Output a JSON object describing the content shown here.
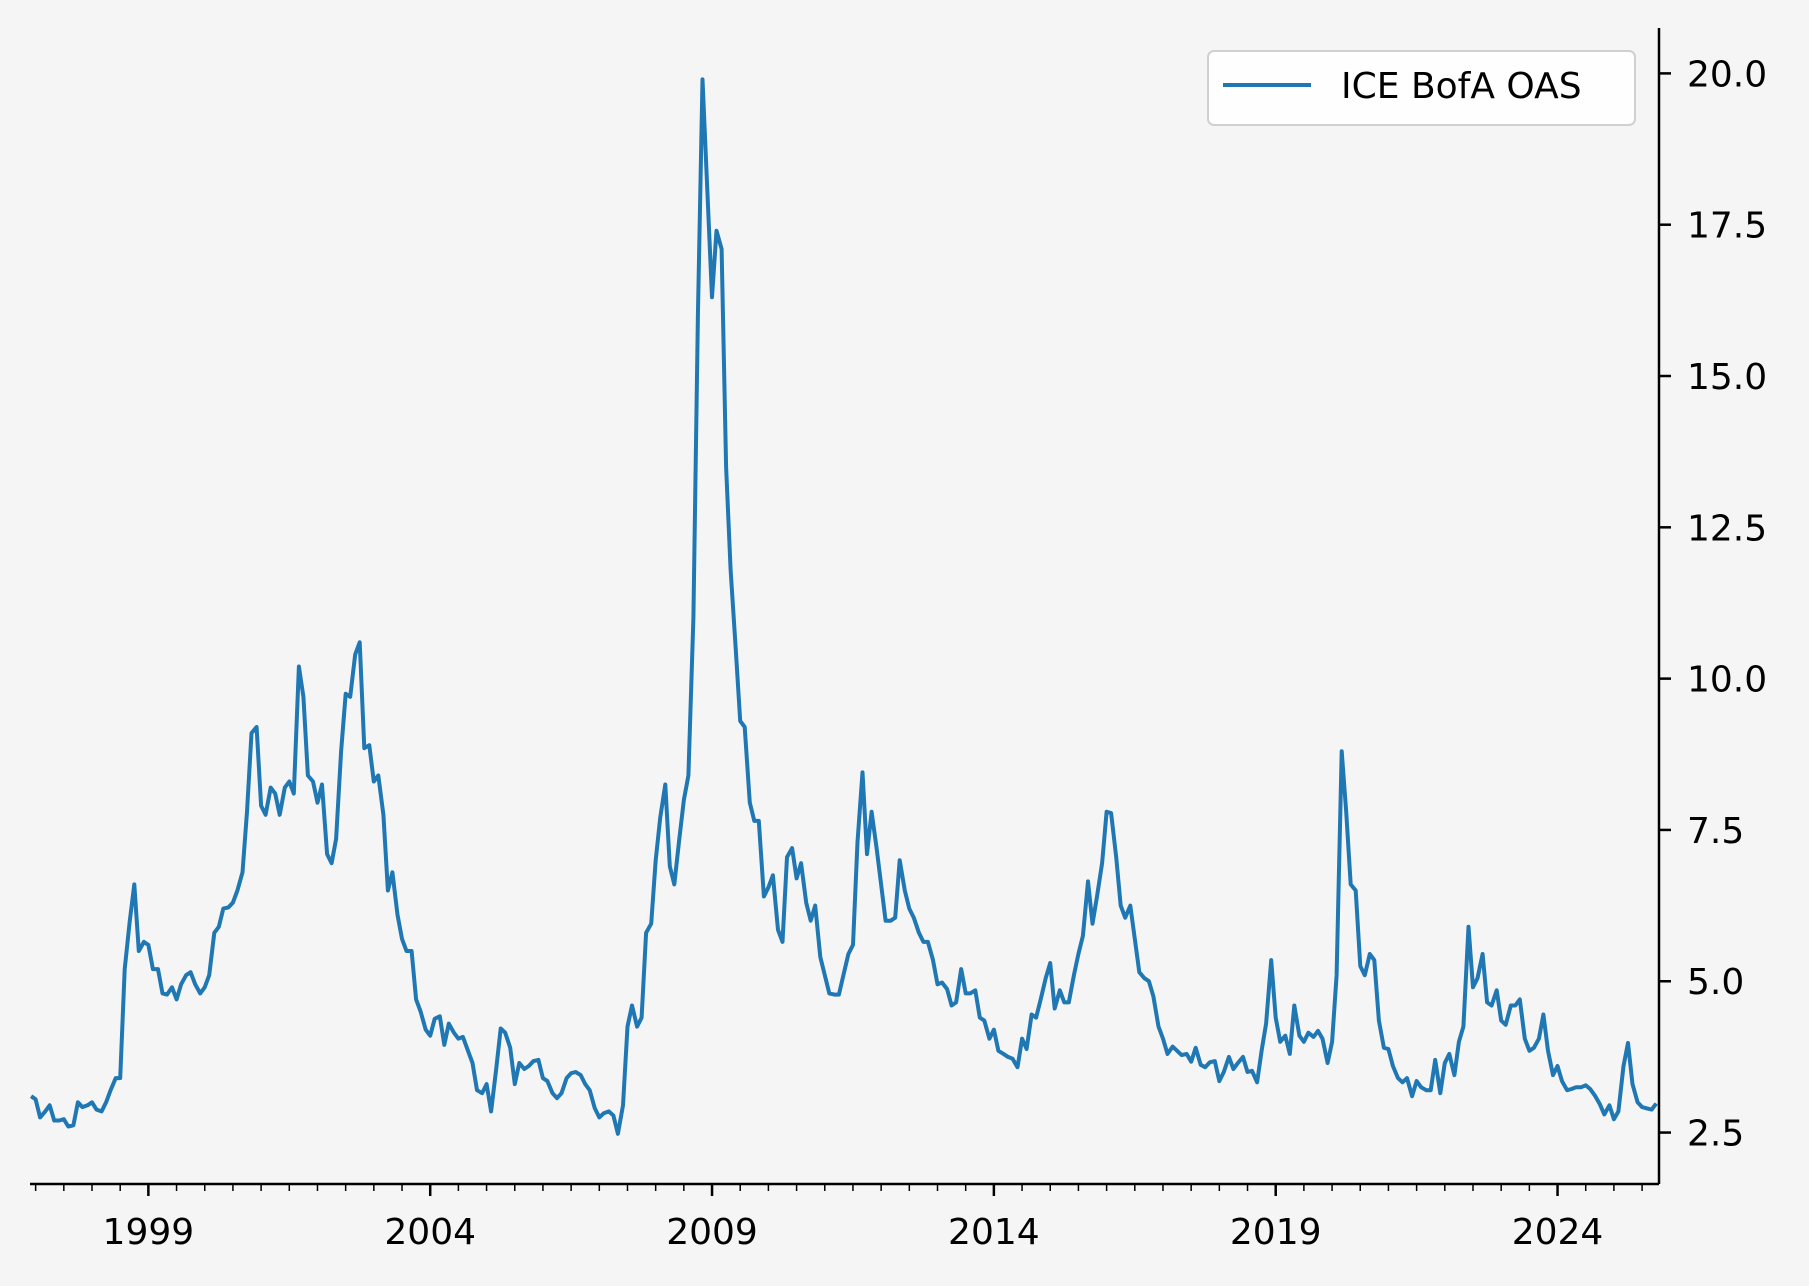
{
  "chart_data": {
    "type": "line",
    "title": "",
    "xlabel": "",
    "ylabel": "",
    "xlim": [
      1996.9,
      2025.8
    ],
    "ylim": [
      1.65,
      20.75
    ],
    "y_axis_side": "right",
    "grid": false,
    "legend": {
      "placement": "top-right",
      "entries": [
        "ICE BofA OAS"
      ]
    },
    "x_ticks": [
      1999,
      2004,
      2009,
      2014,
      2019,
      2024
    ],
    "x_tick_labels": [
      "1999",
      "2004",
      "2009",
      "2014",
      "2019",
      "2024"
    ],
    "y_ticks": [
      2.5,
      5.0,
      7.5,
      10.0,
      12.5,
      15.0,
      17.5,
      20.0
    ],
    "y_tick_labels": [
      "2.5",
      "5.0",
      "7.5",
      "10.0",
      "12.5",
      "15.0",
      "17.5",
      "20.0"
    ],
    "series": [
      {
        "name": "ICE BofA OAS",
        "color": "#1f77b4",
        "x": [
          1996.92,
          1997.0,
          1997.08,
          1997.17,
          1997.25,
          1997.33,
          1997.42,
          1997.5,
          1997.58,
          1997.67,
          1997.75,
          1997.83,
          1997.92,
          1998.0,
          1998.08,
          1998.17,
          1998.25,
          1998.33,
          1998.42,
          1998.5,
          1998.58,
          1998.67,
          1998.75,
          1998.83,
          1998.92,
          1999.0,
          1999.08,
          1999.17,
          1999.25,
          1999.33,
          1999.42,
          1999.5,
          1999.58,
          1999.67,
          1999.75,
          1999.83,
          1999.92,
          2000.0,
          2000.08,
          2000.17,
          2000.25,
          2000.33,
          2000.42,
          2000.5,
          2000.58,
          2000.67,
          2000.75,
          2000.83,
          2000.92,
          2001.0,
          2001.08,
          2001.17,
          2001.25,
          2001.33,
          2001.42,
          2001.5,
          2001.58,
          2001.67,
          2001.75,
          2001.83,
          2001.92,
          2002.0,
          2002.08,
          2002.17,
          2002.25,
          2002.33,
          2002.42,
          2002.5,
          2002.58,
          2002.67,
          2002.75,
          2002.83,
          2002.92,
          2003.0,
          2003.08,
          2003.17,
          2003.25,
          2003.33,
          2003.42,
          2003.5,
          2003.58,
          2003.67,
          2003.75,
          2003.83,
          2003.92,
          2004.0,
          2004.08,
          2004.17,
          2004.25,
          2004.33,
          2004.42,
          2004.5,
          2004.58,
          2004.67,
          2004.75,
          2004.83,
          2004.92,
          2005.0,
          2005.08,
          2005.17,
          2005.25,
          2005.33,
          2005.42,
          2005.5,
          2005.58,
          2005.67,
          2005.75,
          2005.83,
          2005.92,
          2006.0,
          2006.08,
          2006.17,
          2006.25,
          2006.33,
          2006.42,
          2006.5,
          2006.58,
          2006.67,
          2006.75,
          2006.83,
          2006.92,
          2007.0,
          2007.08,
          2007.17,
          2007.25,
          2007.33,
          2007.42,
          2007.5,
          2007.58,
          2007.67,
          2007.75,
          2007.83,
          2007.92,
          2008.0,
          2008.08,
          2008.17,
          2008.25,
          2008.33,
          2008.42,
          2008.5,
          2008.58,
          2008.67,
          2008.75,
          2008.83,
          2008.92,
          2009.0,
          2009.08,
          2009.17,
          2009.25,
          2009.33,
          2009.42,
          2009.5,
          2009.58,
          2009.67,
          2009.75,
          2009.83,
          2009.92,
          2010.0,
          2010.08,
          2010.17,
          2010.25,
          2010.33,
          2010.42,
          2010.5,
          2010.58,
          2010.67,
          2010.75,
          2010.83,
          2010.92,
          2011.0,
          2011.08,
          2011.17,
          2011.25,
          2011.33,
          2011.42,
          2011.5,
          2011.58,
          2011.67,
          2011.75,
          2011.83,
          2011.92,
          2012.0,
          2012.08,
          2012.17,
          2012.25,
          2012.33,
          2012.42,
          2012.5,
          2012.58,
          2012.67,
          2012.75,
          2012.83,
          2012.92,
          2013.0,
          2013.08,
          2013.17,
          2013.25,
          2013.33,
          2013.42,
          2013.5,
          2013.58,
          2013.67,
          2013.75,
          2013.83,
          2013.92,
          2014.0,
          2014.08,
          2014.17,
          2014.25,
          2014.33,
          2014.42,
          2014.5,
          2014.58,
          2014.67,
          2014.75,
          2014.83,
          2014.92,
          2015.0,
          2015.08,
          2015.17,
          2015.25,
          2015.33,
          2015.42,
          2015.5,
          2015.58,
          2015.67,
          2015.75,
          2015.83,
          2015.92,
          2016.0,
          2016.08,
          2016.17,
          2016.25,
          2016.33,
          2016.42,
          2016.5,
          2016.58,
          2016.67,
          2016.75,
          2016.83,
          2016.92,
          2017.0,
          2017.08,
          2017.17,
          2017.25,
          2017.33,
          2017.42,
          2017.5,
          2017.58,
          2017.67,
          2017.75,
          2017.83,
          2017.92,
          2018.0,
          2018.08,
          2018.17,
          2018.25,
          2018.33,
          2018.42,
          2018.5,
          2018.58,
          2018.67,
          2018.75,
          2018.83,
          2018.92,
          2019.0,
          2019.08,
          2019.17,
          2019.25,
          2019.33,
          2019.42,
          2019.5,
          2019.58,
          2019.67,
          2019.75,
          2019.83,
          2019.92,
          2020.0,
          2020.08,
          2020.17,
          2020.25,
          2020.33,
          2020.42,
          2020.5,
          2020.58,
          2020.67,
          2020.75,
          2020.83,
          2020.92,
          2021.0,
          2021.08,
          2021.17,
          2021.25,
          2021.33,
          2021.42,
          2021.5,
          2021.58,
          2021.67,
          2021.75,
          2021.83,
          2021.92,
          2022.0,
          2022.08,
          2022.17,
          2022.25,
          2022.33,
          2022.42,
          2022.5,
          2022.58,
          2022.67,
          2022.75,
          2022.83,
          2022.92,
          2023.0,
          2023.08,
          2023.17,
          2023.25,
          2023.33,
          2023.42,
          2023.5,
          2023.58,
          2023.67,
          2023.75,
          2023.83,
          2023.92,
          2024.0,
          2024.08,
          2024.17,
          2024.25,
          2024.33,
          2024.42,
          2024.5,
          2024.58,
          2024.67,
          2024.75,
          2024.83,
          2024.92,
          2025.0,
          2025.08,
          2025.17,
          2025.25,
          2025.33,
          2025.42,
          2025.5,
          2025.58,
          2025.67,
          2025.75
        ],
        "values": [
          3.1,
          3.05,
          2.75,
          2.85,
          2.95,
          2.7,
          2.7,
          2.72,
          2.6,
          2.62,
          3.0,
          2.92,
          2.95,
          3.0,
          2.88,
          2.85,
          3.0,
          3.2,
          3.4,
          3.4,
          5.2,
          6.0,
          6.6,
          5.5,
          5.65,
          5.6,
          5.2,
          5.2,
          4.8,
          4.78,
          4.9,
          4.7,
          4.95,
          5.1,
          5.15,
          4.95,
          4.8,
          4.9,
          5.1,
          5.8,
          5.9,
          6.2,
          6.22,
          6.3,
          6.5,
          6.8,
          7.8,
          9.1,
          9.2,
          7.9,
          7.75,
          8.2,
          8.1,
          7.75,
          8.2,
          8.3,
          8.1,
          10.2,
          9.7,
          8.4,
          8.3,
          7.95,
          8.25,
          7.1,
          6.95,
          7.35,
          8.8,
          9.75,
          9.7,
          10.4,
          10.6,
          8.85,
          8.9,
          8.3,
          8.4,
          7.75,
          6.5,
          6.8,
          6.1,
          5.7,
          5.5,
          5.5,
          4.7,
          4.5,
          4.2,
          4.1,
          4.38,
          4.42,
          3.95,
          4.3,
          4.15,
          4.05,
          4.08,
          3.85,
          3.65,
          3.2,
          3.15,
          3.3,
          2.85,
          3.55,
          4.22,
          4.15,
          3.9,
          3.3,
          3.65,
          3.55,
          3.6,
          3.68,
          3.7,
          3.4,
          3.35,
          3.15,
          3.07,
          3.15,
          3.4,
          3.48,
          3.5,
          3.45,
          3.3,
          3.2,
          2.9,
          2.75,
          2.82,
          2.85,
          2.78,
          2.48,
          2.95,
          4.25,
          4.6,
          4.25,
          4.4,
          5.8,
          5.95,
          7.0,
          7.7,
          8.25,
          6.9,
          6.6,
          7.35,
          8.0,
          8.4,
          11.0,
          16.0,
          19.9,
          18.0,
          16.3,
          17.4,
          17.1,
          13.5,
          11.8,
          10.5,
          9.3,
          9.2,
          7.95,
          7.65,
          7.65,
          6.4,
          6.55,
          6.75,
          5.85,
          5.65,
          7.05,
          7.2,
          6.7,
          6.95,
          6.3,
          6.0,
          6.25,
          5.4,
          5.1,
          4.8,
          4.78,
          4.78,
          5.1,
          5.45,
          5.6,
          7.3,
          8.45,
          7.1,
          7.8,
          7.2,
          6.6,
          6.0,
          6.0,
          6.05,
          7.0,
          6.5,
          6.2,
          6.05,
          5.8,
          5.65,
          5.65,
          5.35,
          4.95,
          4.98,
          4.87,
          4.6,
          4.65,
          5.2,
          4.8,
          4.8,
          4.85,
          4.4,
          4.35,
          4.05,
          4.2,
          3.85,
          3.8,
          3.75,
          3.72,
          3.58,
          4.05,
          3.88,
          4.45,
          4.4,
          4.7,
          5.05,
          5.3,
          4.55,
          4.85,
          4.65,
          4.65,
          5.1,
          5.45,
          5.75,
          6.65,
          5.95,
          6.4,
          6.95,
          7.8,
          7.78,
          7.05,
          6.25,
          6.05,
          6.25,
          5.7,
          5.15,
          5.05,
          5.0,
          4.75,
          4.25,
          4.05,
          3.8,
          3.92,
          3.85,
          3.78,
          3.8,
          3.67,
          3.9,
          3.62,
          3.58,
          3.66,
          3.68,
          3.35,
          3.5,
          3.75,
          3.55,
          3.65,
          3.75,
          3.5,
          3.52,
          3.33,
          3.85,
          4.3,
          5.35,
          4.4,
          4.0,
          4.1,
          3.8,
          4.6,
          4.1,
          4.0,
          4.15,
          4.08,
          4.18,
          4.05,
          3.65,
          4.0,
          5.1,
          8.8,
          7.8,
          6.6,
          6.5,
          5.25,
          5.1,
          5.45,
          5.35,
          4.35,
          3.9,
          3.88,
          3.6,
          3.4,
          3.33,
          3.4,
          3.1,
          3.35,
          3.25,
          3.2,
          3.2,
          3.7,
          3.15,
          3.65,
          3.8,
          3.45,
          4.0,
          4.25,
          5.9,
          4.9,
          5.05,
          5.45,
          4.65,
          4.6,
          4.85,
          4.35,
          4.28,
          4.6,
          4.6,
          4.7,
          4.05,
          3.85,
          3.9,
          4.05,
          4.45,
          3.85,
          3.45,
          3.6,
          3.35,
          3.2,
          3.22,
          3.25,
          3.25,
          3.28,
          3.22,
          3.1,
          2.97,
          2.8,
          2.95,
          2.72,
          2.85,
          3.6,
          3.98,
          3.3,
          3.0,
          2.92,
          2.9,
          2.88,
          2.98
        ]
      }
    ]
  }
}
